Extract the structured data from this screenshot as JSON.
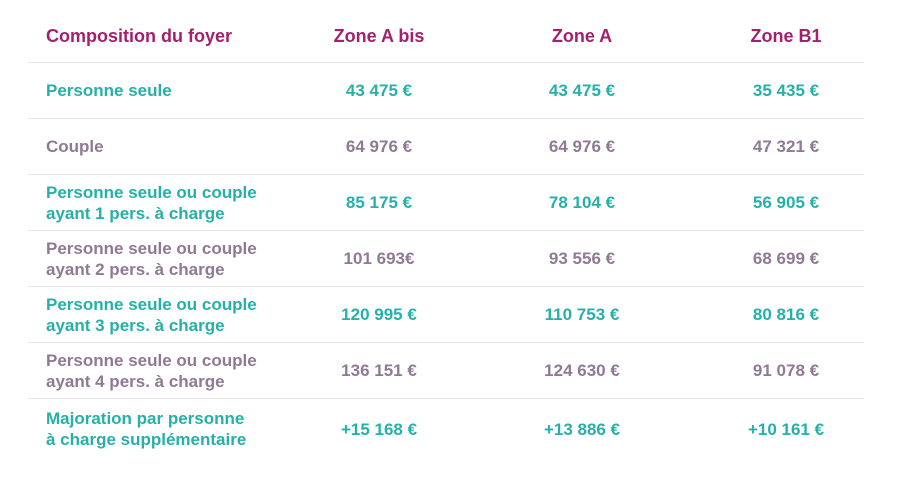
{
  "table": {
    "headers": [
      "Composition du foyer",
      "Zone A bis",
      "Zone A",
      "Zone B1"
    ],
    "rows": [
      {
        "label": [
          "Personne seule"
        ],
        "values": [
          "43 475 €",
          "43 475 €",
          "35 435 €"
        ],
        "tone": "teal"
      },
      {
        "label": [
          "Couple"
        ],
        "values": [
          "64 976 €",
          "64 976 €",
          "47 321 €"
        ],
        "tone": "mauve"
      },
      {
        "label": [
          "Personne seule ou couple",
          "ayant 1 pers. à charge"
        ],
        "values": [
          "85 175 €",
          "78 104 €",
          "56 905 €"
        ],
        "tone": "teal"
      },
      {
        "label": [
          "Personne seule ou couple",
          "ayant 2 pers. à charge"
        ],
        "values": [
          "101 693€",
          "93 556 €",
          "68 699 €"
        ],
        "tone": "mauve"
      },
      {
        "label": [
          "Personne seule ou couple",
          "ayant 3 pers. à charge"
        ],
        "values": [
          "120 995 €",
          "110 753 €",
          "80 816 €"
        ],
        "tone": "teal"
      },
      {
        "label": [
          "Personne seule ou couple",
          "ayant 4 pers. à charge"
        ],
        "values": [
          "136 151 €",
          "124 630 €",
          "91 078 €"
        ],
        "tone": "mauve"
      },
      {
        "label": [
          "Majoration par personne",
          "à charge supplémentaire"
        ],
        "values": [
          "+15 168 €",
          "+13 886 €",
          "+10 161 €"
        ],
        "tone": "teal"
      }
    ]
  },
  "colors": {
    "header": "#a3206e",
    "teal": "#25b0a8",
    "mauve": "#8f7995",
    "divider": "#e7e7ea"
  }
}
